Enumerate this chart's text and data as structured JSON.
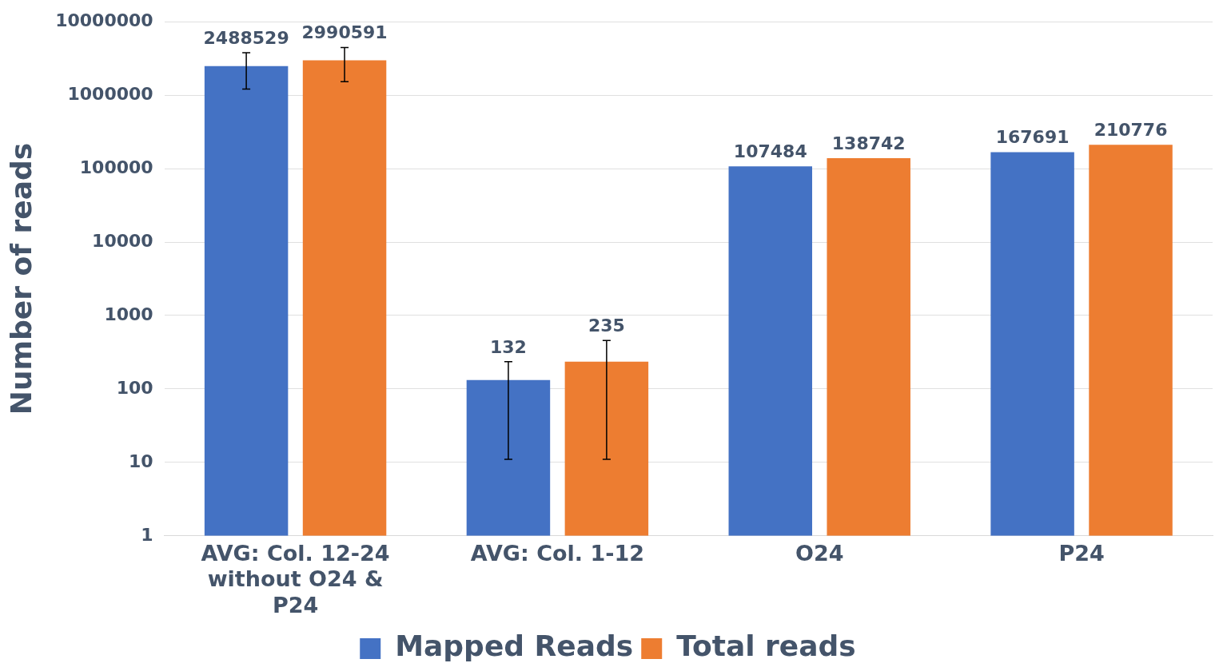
{
  "chart_data": {
    "type": "bar",
    "ylabel": "Number of reads",
    "log": "y",
    "ylim": [
      1,
      10000000
    ],
    "yticks": [
      1,
      10,
      100,
      1000,
      10000,
      100000,
      1000000,
      10000000
    ],
    "grid": "y",
    "legend": "bottom",
    "data_labels": true,
    "categories": [
      "AVG: Col. 12-24 without O24 & P24",
      "AVG: Col. 1-12",
      "O24",
      "P24"
    ],
    "series": [
      {
        "name": "Mapped Reads",
        "color": "#4472c4",
        "values": [
          2488529,
          132,
          107484,
          167691
        ],
        "errors": [
          [
            1210000,
            3780000
          ],
          [
            11,
            235
          ],
          null,
          null
        ]
      },
      {
        "name": "Total reads",
        "color": "#ed7d31",
        "values": [
          2990591,
          235,
          138742,
          210776
        ],
        "errors": [
          [
            1530000,
            4460000
          ],
          [
            11,
            457
          ],
          null,
          null
        ]
      }
    ]
  }
}
